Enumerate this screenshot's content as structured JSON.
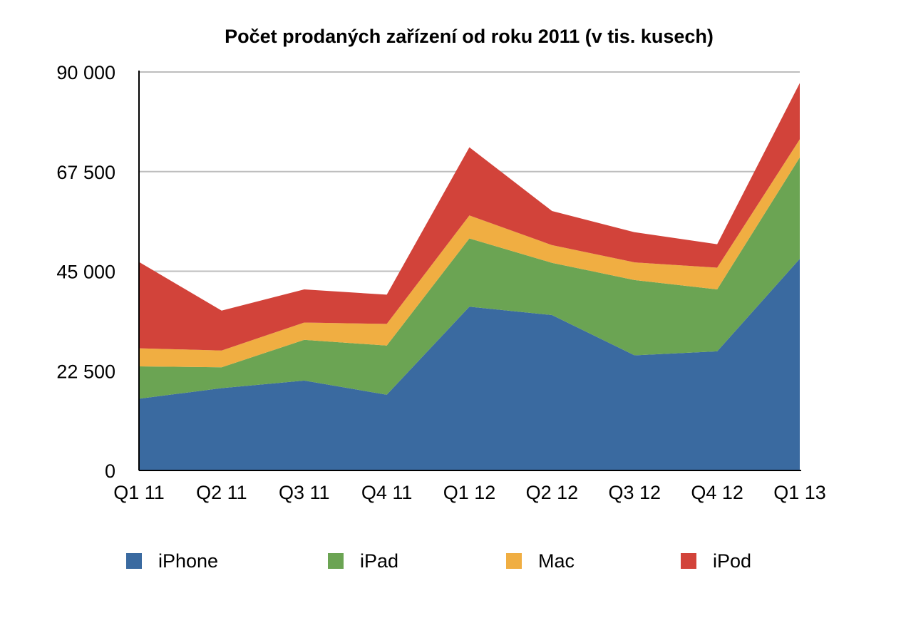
{
  "chart_data": {
    "type": "area",
    "stacked": true,
    "title": "Počet prodaných zařízení od roku 2011 (v tis. kusech)",
    "xlabel": "",
    "ylabel": "",
    "categories": [
      "Q1 11",
      "Q2 11",
      "Q3 11",
      "Q4 11",
      "Q1 12",
      "Q2 12",
      "Q3 12",
      "Q4 12",
      "Q1 13"
    ],
    "ylim": [
      0,
      90000
    ],
    "yticks": [
      0,
      22500,
      45000,
      67500,
      90000
    ],
    "ytick_labels": [
      "0",
      "22 500",
      "45 000",
      "67 500",
      "90 000"
    ],
    "grid": true,
    "legend_position": "bottom",
    "series": [
      {
        "name": "iPhone",
        "color": "#3A6AA0",
        "values": [
          16200,
          18600,
          20300,
          17100,
          37000,
          35100,
          26000,
          26900,
          47800
        ]
      },
      {
        "name": "iPad",
        "color": "#6BA453",
        "values": [
          7300,
          4700,
          9200,
          11100,
          15400,
          11800,
          17000,
          14000,
          22900
        ]
      },
      {
        "name": "Mac",
        "color": "#F0AE42",
        "values": [
          4100,
          3800,
          3900,
          4900,
          5200,
          4000,
          4000,
          4900,
          4100
        ]
      },
      {
        "name": "iPod",
        "color": "#D2433A",
        "values": [
          19500,
          9000,
          7500,
          6600,
          15400,
          7700,
          6800,
          5300,
          12700
        ]
      }
    ]
  }
}
